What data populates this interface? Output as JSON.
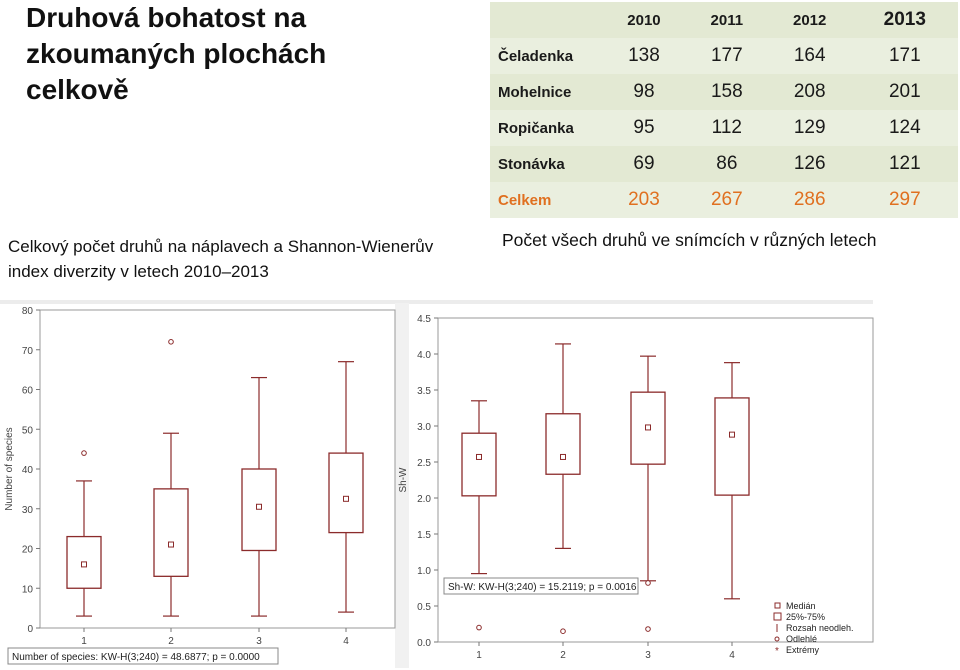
{
  "title": "Druhová bohatost na zkoumaných plochách celkově",
  "subtitle": "Celkový počet druhů na náplavech a Shannon-Wienerův index diverzity v letech 2010–2013",
  "table": {
    "years": [
      "2010",
      "2011",
      "2012",
      "2013"
    ],
    "rows": [
      {
        "label": "Čeladenka",
        "values": [
          "138",
          "177",
          "164",
          "171"
        ]
      },
      {
        "label": "Mohelnice",
        "values": [
          "98",
          "158",
          "208",
          "201"
        ]
      },
      {
        "label": "Ropičanka",
        "values": [
          "95",
          "112",
          "129",
          "124"
        ]
      },
      {
        "label": "Stonávka",
        "values": [
          "69",
          "86",
          "126",
          "121"
        ]
      }
    ],
    "total": {
      "label": "Celkem",
      "values": [
        "203",
        "267",
        "286",
        "297"
      ]
    },
    "caption": "Počet všech druhů ve snímcích v různých letech"
  },
  "colors": {
    "box": "#8b2b2b",
    "total": "#e07020",
    "table_bg": "#eaefdf"
  },
  "chart_data": [
    {
      "type": "box",
      "ylabel": "Number of species",
      "ylim": [
        0,
        80
      ],
      "yticks": [
        "0",
        "10",
        "20",
        "30",
        "40",
        "50",
        "60",
        "70",
        "80"
      ],
      "categories": [
        "1",
        "2",
        "3",
        "4"
      ],
      "boxes": [
        {
          "min": 3,
          "q1": 10,
          "median": 16,
          "q3": 23,
          "max": 37,
          "outliers": [
            44
          ],
          "extremes": []
        },
        {
          "min": 3,
          "q1": 13,
          "median": 21,
          "q3": 35,
          "max": 49,
          "outliers": [
            72
          ],
          "extremes": []
        },
        {
          "min": 3,
          "q1": 19.5,
          "median": 30.5,
          "q3": 40,
          "max": 63,
          "outliers": [],
          "extremes": []
        },
        {
          "min": 4,
          "q1": 24,
          "median": 32.5,
          "q3": 44,
          "max": 67,
          "outliers": [],
          "extremes": []
        }
      ],
      "stat_text": "Number of species:  KW-H(3;240) = 48.6877; p = 0.0000"
    },
    {
      "type": "box",
      "ylabel": "Sh-W",
      "ylim": [
        0,
        4.5
      ],
      "yticks": [
        "0.0",
        "0.5",
        "1.0",
        "1.5",
        "2.0",
        "2.5",
        "3.0",
        "3.5",
        "4.0",
        "4.5"
      ],
      "categories": [
        "1",
        "2",
        "3",
        "4"
      ],
      "boxes": [
        {
          "min": 0.95,
          "q1": 2.03,
          "median": 2.57,
          "q3": 2.9,
          "max": 3.35,
          "outliers": [
            0.2
          ],
          "extremes": []
        },
        {
          "min": 1.3,
          "q1": 2.33,
          "median": 2.57,
          "q3": 3.17,
          "max": 4.14,
          "outliers": [
            0.15
          ],
          "extremes": []
        },
        {
          "min": 0.85,
          "q1": 2.47,
          "median": 2.98,
          "q3": 3.47,
          "max": 3.97,
          "outliers": [
            0.82,
            0.18
          ],
          "extremes": []
        },
        {
          "min": 0.6,
          "q1": 2.04,
          "median": 2.88,
          "q3": 3.39,
          "max": 3.88,
          "outliers": [],
          "extremes": []
        }
      ],
      "stat_text": "Sh-W:  KW-H(3;240) = 15.2119; p = 0.0016",
      "legend": [
        "Medián",
        "25%-75%",
        "Rozsah neodleh.",
        "Odlehlé",
        "Extrémy"
      ]
    }
  ]
}
